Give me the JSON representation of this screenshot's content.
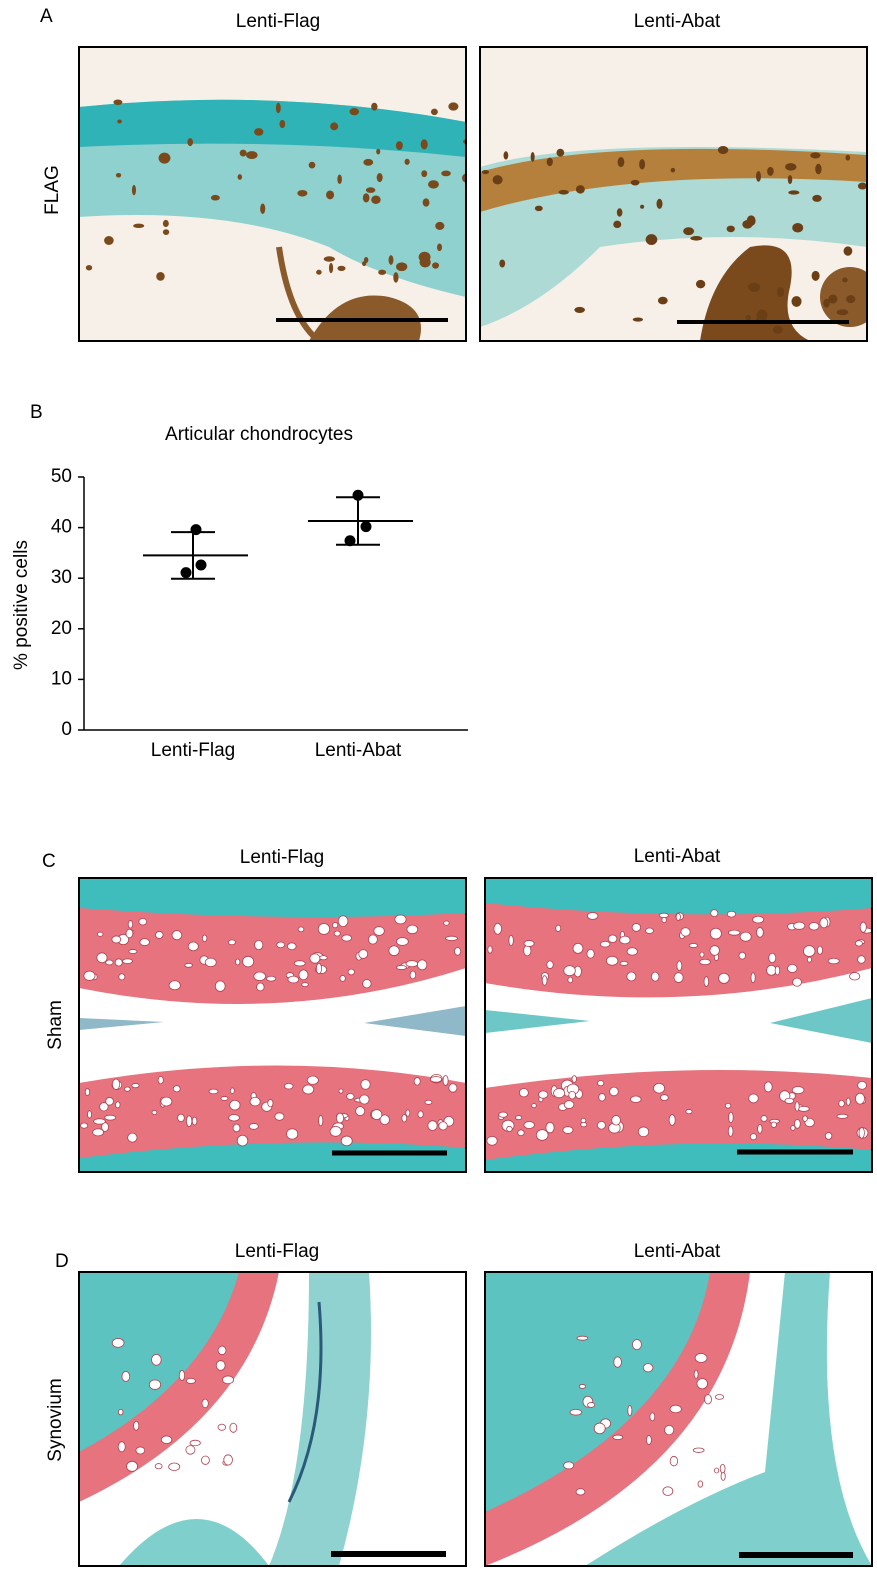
{
  "panel_a": {
    "letter": "A",
    "columns": [
      "Lenti-Flag",
      "Lenti-Abat"
    ],
    "row_label": "FLAG"
  },
  "panel_b": {
    "letter": "B"
  },
  "chart_data": {
    "type": "dot",
    "title": "Articular chondrocytes",
    "y_label": "% positive cells",
    "categories": [
      "Lenti-Flag",
      "Lenti-Abat"
    ],
    "points": [
      [
        39.6,
        31.1,
        32.6
      ],
      [
        46.4,
        37.4,
        40.2
      ]
    ],
    "means": [
      34.5,
      41.3
    ],
    "sd": [
      4.6,
      4.7
    ],
    "color": "#000000",
    "ylim": [
      0,
      50
    ],
    "yticks": [
      0,
      10,
      20,
      30,
      40,
      50
    ]
  },
  "panel_c": {
    "letter": "C",
    "columns": [
      "Lenti-Flag",
      "Lenti-Abat"
    ],
    "row_label": "Sham"
  },
  "panel_d": {
    "letter": "D",
    "columns": [
      "Lenti-Flag",
      "Lenti-Abat"
    ],
    "row_label": "Synovium"
  }
}
